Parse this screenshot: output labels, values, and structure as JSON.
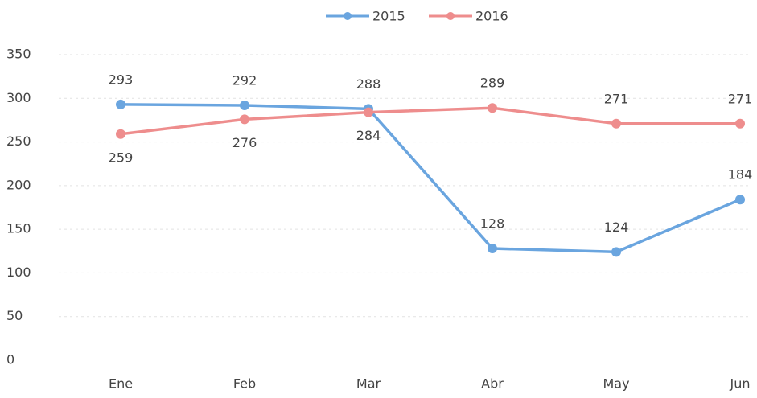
{
  "chart_data": {
    "type": "line",
    "categories": [
      "Ene",
      "Feb",
      "Mar",
      "Abr",
      "May",
      "Jun"
    ],
    "series": [
      {
        "name": "2015",
        "color": "#6aa5df",
        "values": [
          293,
          292,
          288,
          128,
          124,
          184
        ]
      },
      {
        "name": "2016",
        "color": "#ee8d8d",
        "values": [
          259,
          276,
          284,
          289,
          271,
          271
        ]
      }
    ],
    "ylim": [
      0,
      350
    ],
    "yticks": [
      0,
      50,
      100,
      150,
      200,
      250,
      300,
      350
    ],
    "grid": true,
    "legend": "top"
  }
}
